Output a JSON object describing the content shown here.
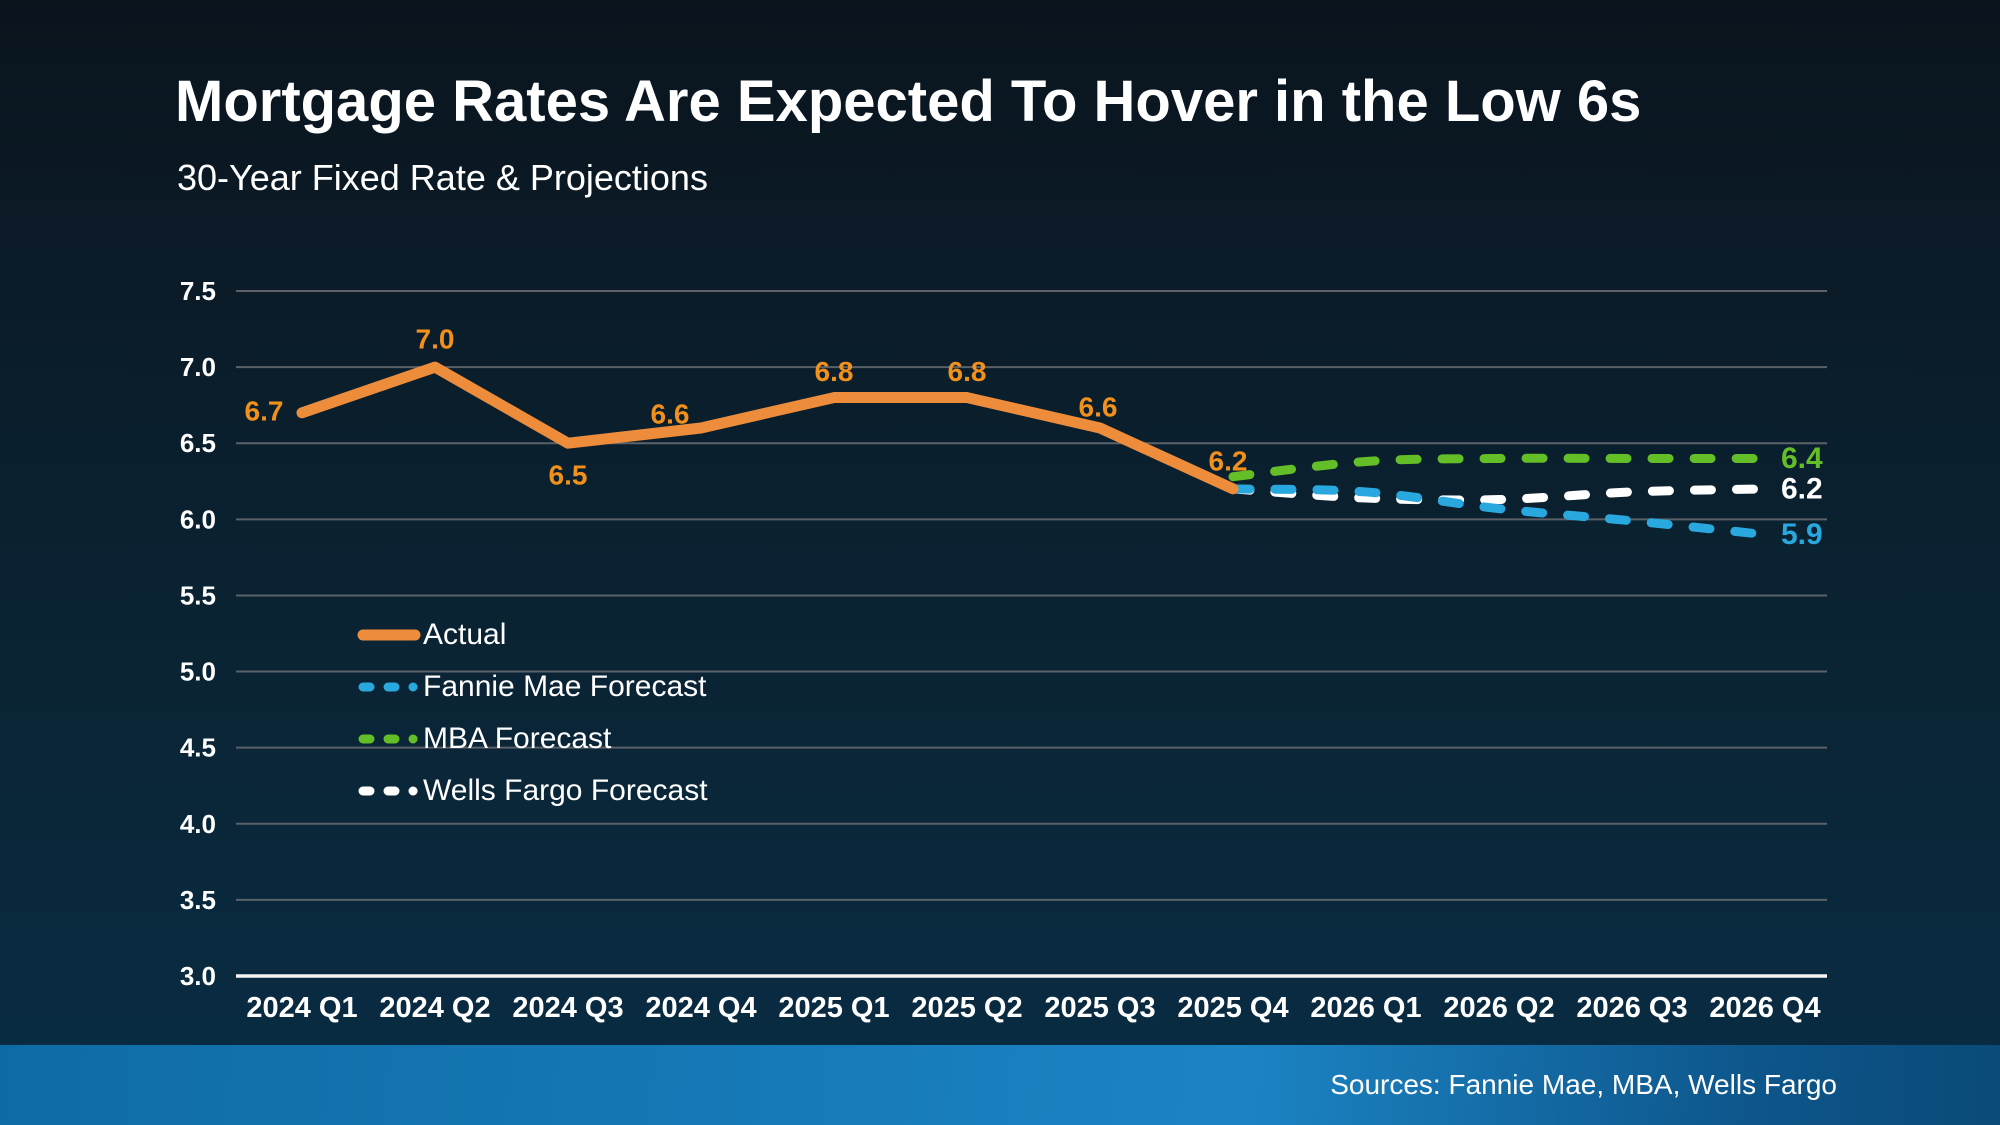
{
  "page": {
    "source_note": "Sources: Fannie Mae, MBA, Wells Fargo"
  },
  "colors": {
    "background_top": "#0a141d",
    "background_bottom": "#092e45",
    "gridline": "#5b6167",
    "axis_line": "#f5f5f5",
    "tick_text": "#ffffff",
    "footer_bar_blue": "#177ab8",
    "accent_orange": "#ed8c3b",
    "accent_blue": "#29a8e0",
    "accent_green": "#63be27",
    "accent_white": "#ffffff"
  },
  "chart_data": {
    "type": "line",
    "title": "Mortgage Rates Are Expected To Hover in the Low 6s",
    "subtitle": "30-Year Fixed Rate & Projections",
    "xlabel": "",
    "ylabel": "",
    "ylim": [
      3.0,
      7.5
    ],
    "ytick_step": 0.5,
    "grid": "horizontal",
    "legend_position": "inside-left",
    "categories": [
      "2024 Q1",
      "2024 Q2",
      "2024 Q3",
      "2024 Q4",
      "2025 Q1",
      "2025 Q2",
      "2025 Q3",
      "2025 Q4",
      "2026 Q1",
      "2026 Q2",
      "2026 Q3",
      "2026 Q4"
    ],
    "yticks": [
      "7.5",
      "7.0",
      "6.5",
      "6.0",
      "5.5",
      "5.0",
      "4.5",
      "4.0",
      "3.5",
      "3.0"
    ],
    "series": [
      {
        "name": "Actual",
        "color": "#ed8c3b",
        "label_color": "#f1911c",
        "style": "solid",
        "values": [
          6.7,
          7.0,
          6.5,
          6.6,
          6.8,
          6.8,
          6.6,
          6.2,
          null,
          null,
          null,
          null
        ],
        "point_labels": [
          "6.7",
          "7.0",
          "6.5",
          "6.6",
          "6.8",
          "6.8",
          "6.6",
          "6.2"
        ]
      },
      {
        "name": "Fannie Mae Forecast",
        "color": "#29a8e0",
        "style": "dashed",
        "values": [
          null,
          null,
          null,
          null,
          null,
          null,
          null,
          6.2,
          6.18,
          6.07,
          5.99,
          5.9
        ],
        "end_label": "5.9"
      },
      {
        "name": "MBA Forecast",
        "color": "#63be27",
        "style": "dashed",
        "values": [
          null,
          null,
          null,
          null,
          null,
          null,
          null,
          6.28,
          6.38,
          6.4,
          6.4,
          6.4
        ],
        "end_label": "6.4"
      },
      {
        "name": "Wells Fargo Forecast",
        "color": "#ffffff",
        "style": "dashed",
        "values": [
          null,
          null,
          null,
          null,
          null,
          null,
          null,
          6.2,
          6.14,
          6.13,
          6.18,
          6.2
        ],
        "end_label": "6.2"
      }
    ]
  }
}
